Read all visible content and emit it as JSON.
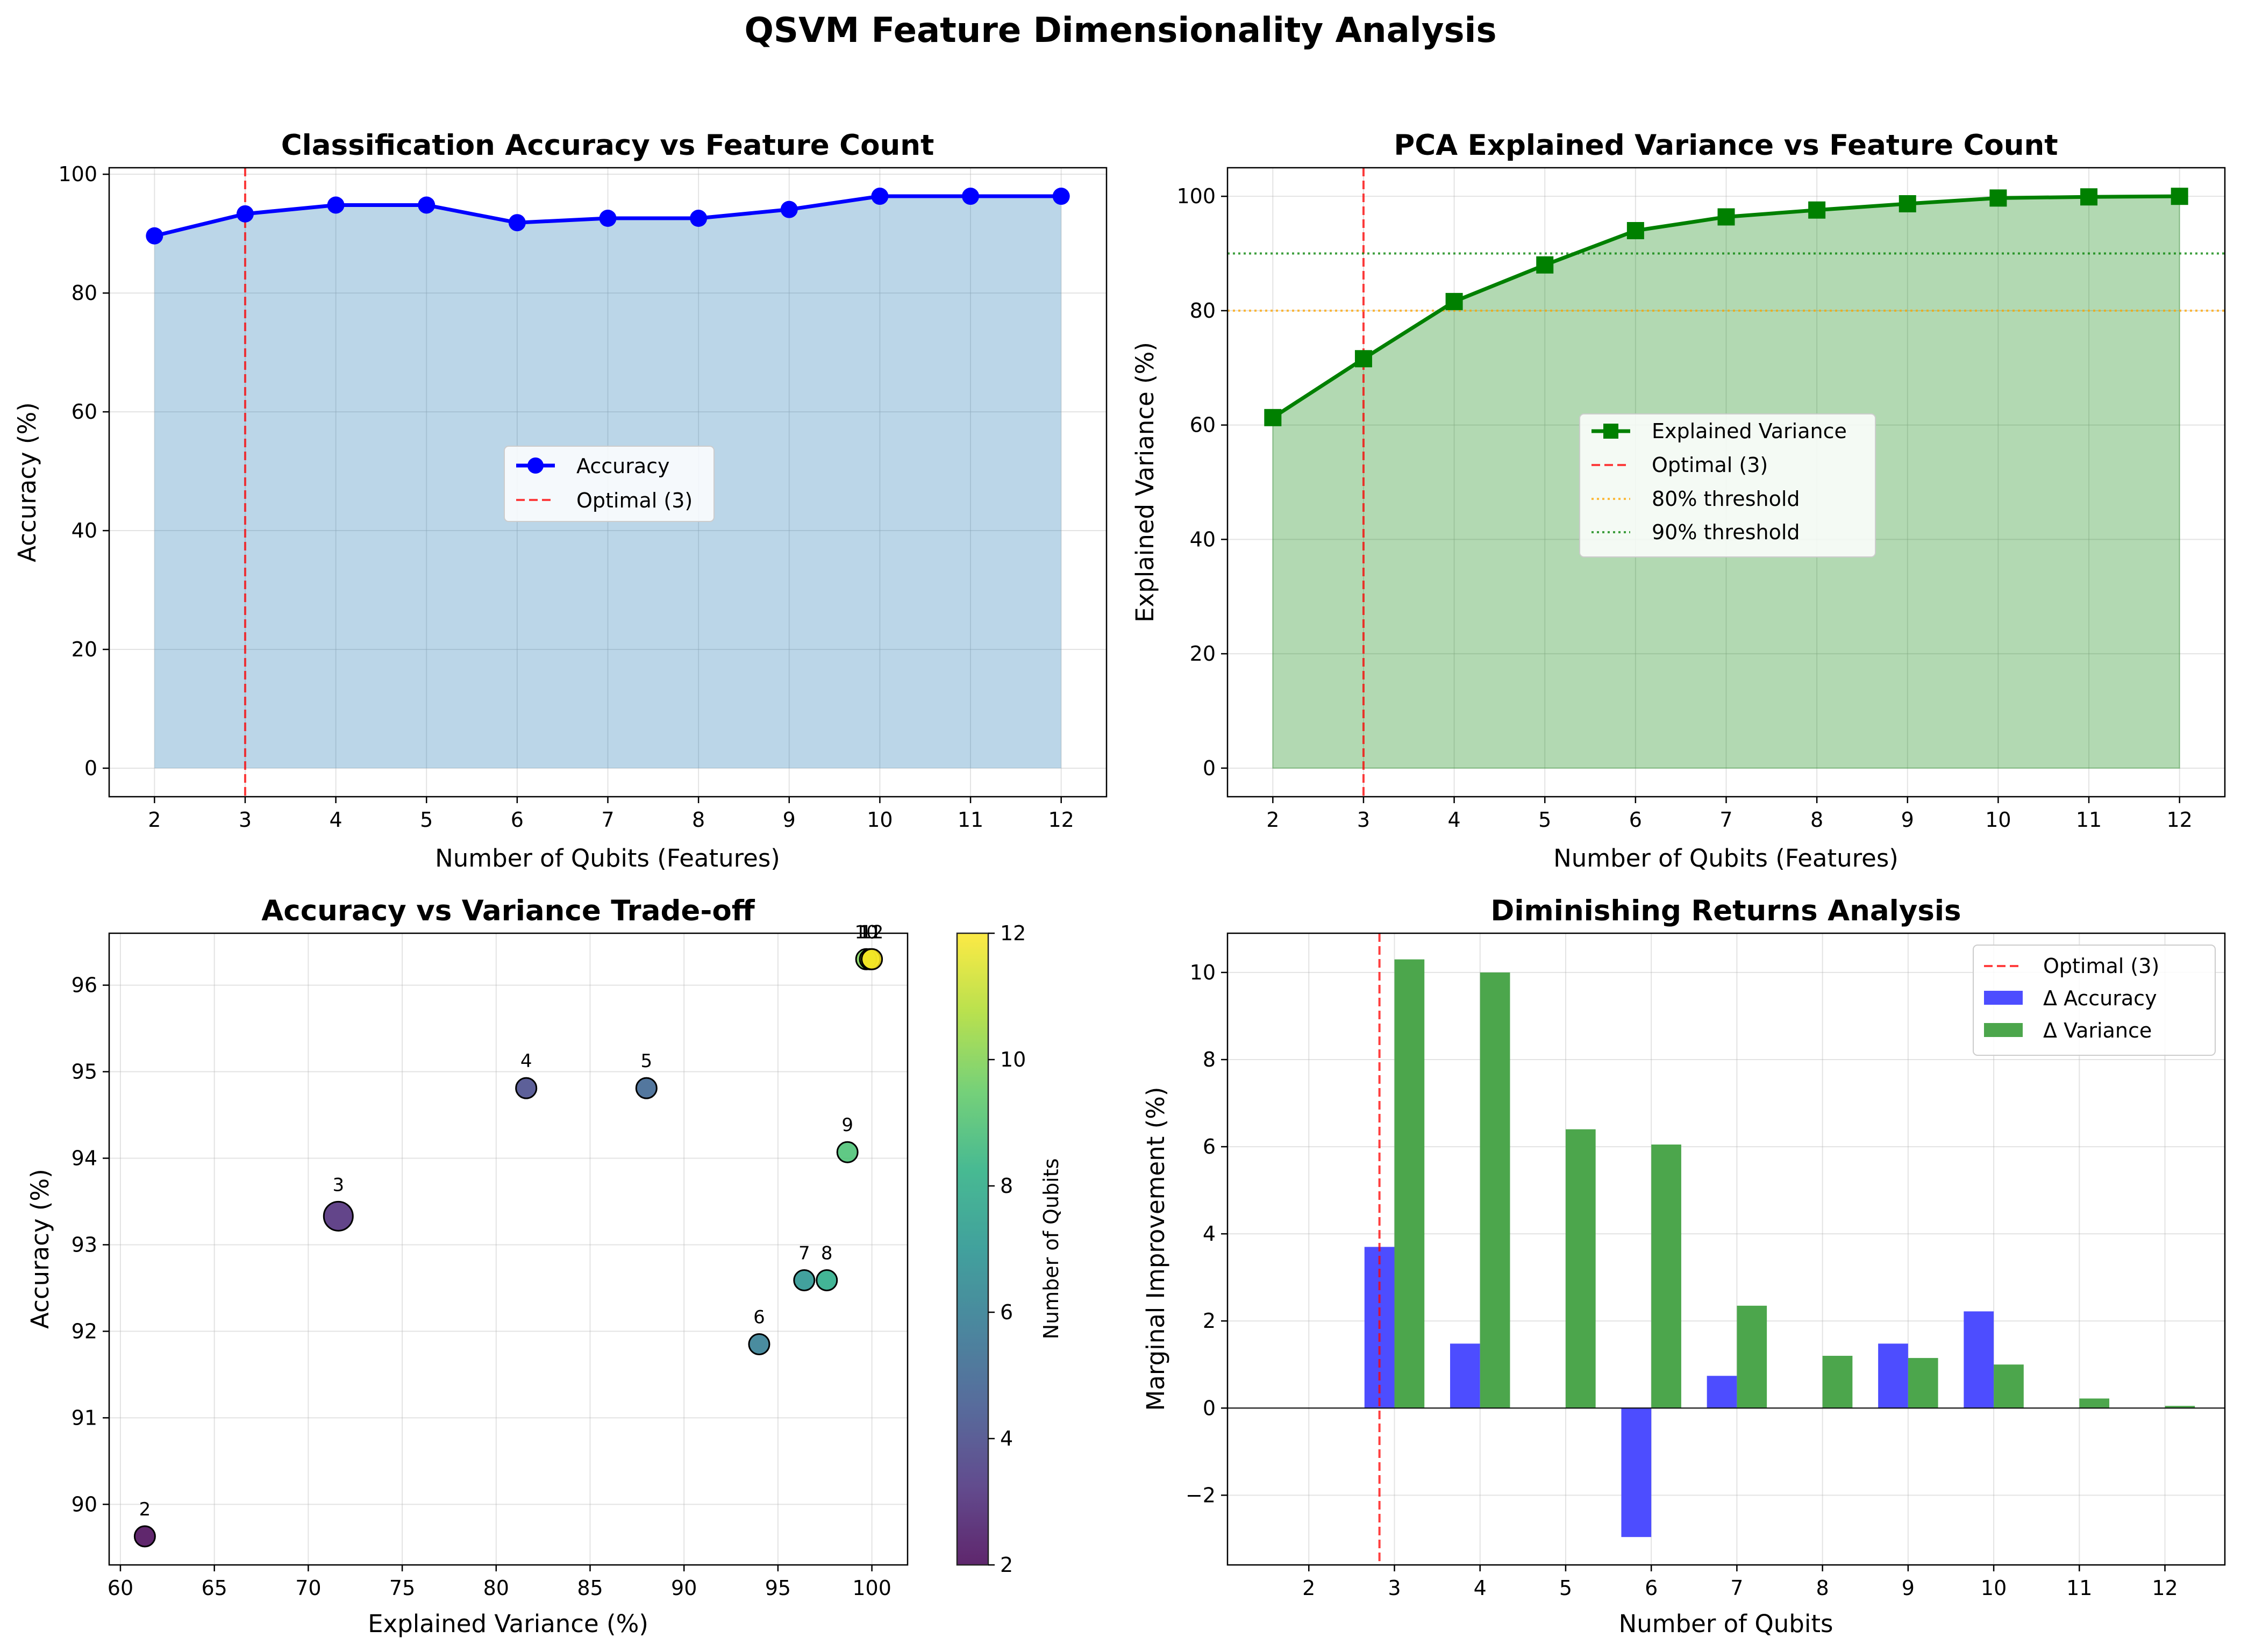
{
  "figure_title": "QSVM Feature Dimensionality Analysis",
  "colors": {
    "accuracy": "#0000ff",
    "acc_fill": "#1f77b4",
    "variance": "#008000",
    "optimal": "#ff0000",
    "t80": "#ffa500",
    "t90": "#008000",
    "delta_acc": "#4d4dff",
    "delta_var": "#4ca64c"
  },
  "chart_data": [
    {
      "id": "accuracy_vs_features",
      "type": "line",
      "title": "Classification Accuracy vs Feature Count",
      "xlabel": "Number of Qubits (Features)",
      "ylabel": "Accuracy (%)",
      "x": [
        2,
        3,
        4,
        5,
        6,
        7,
        8,
        9,
        10,
        11,
        12
      ],
      "series": [
        {
          "name": "Accuracy",
          "values": [
            89.63,
            93.33,
            94.81,
            94.81,
            91.85,
            92.59,
            92.59,
            94.07,
            96.3,
            96.3,
            96.3
          ]
        }
      ],
      "optimal_x": 3,
      "optimal_label": "Optimal (3)",
      "xlim": [
        1.5,
        12.5
      ],
      "ylim": [
        -4.8,
        101.1
      ],
      "xticks": [
        "2",
        "3",
        "4",
        "5",
        "6",
        "7",
        "8",
        "9",
        "10",
        "11",
        "12"
      ],
      "yticks": [
        "0",
        "20",
        "40",
        "60",
        "80",
        "100"
      ],
      "legend": "center",
      "grid": true
    },
    {
      "id": "pca_variance",
      "type": "line",
      "title": "PCA Explained Variance vs Feature Count",
      "xlabel": "Number of Qubits (Features)",
      "ylabel": "Explained Variance (%)",
      "x": [
        2,
        3,
        4,
        5,
        6,
        7,
        8,
        9,
        10,
        11,
        12
      ],
      "series": [
        {
          "name": "Explained Variance",
          "values": [
            61.3,
            71.6,
            81.6,
            88.0,
            94.0,
            96.4,
            97.6,
            98.7,
            99.7,
            99.9,
            100.0
          ]
        }
      ],
      "optimal_x": 3,
      "thresholds": [
        {
          "value": 80,
          "label": "80% threshold"
        },
        {
          "value": 90,
          "label": "90% threshold"
        }
      ],
      "legend_labels": [
        "Explained Variance",
        "Optimal (3)",
        "80% threshold",
        "90% threshold"
      ],
      "xlim": [
        1.5,
        12.5
      ],
      "ylim": [
        -5,
        105
      ],
      "xticks": [
        "2",
        "3",
        "4",
        "5",
        "6",
        "7",
        "8",
        "9",
        "10",
        "11",
        "12"
      ],
      "yticks": [
        "0",
        "20",
        "40",
        "60",
        "80",
        "100"
      ],
      "legend": "center",
      "grid": true
    },
    {
      "id": "tradeoff_scatter",
      "type": "scatter",
      "title": "Accuracy vs Variance Trade-off",
      "xlabel": "Explained Variance (%)",
      "ylabel": "Accuracy (%)",
      "points": [
        {
          "x": 61.3,
          "y": 89.63,
          "qubits": 2,
          "label": "2"
        },
        {
          "x": 71.6,
          "y": 93.33,
          "qubits": 3,
          "label": "3",
          "highlight": true
        },
        {
          "x": 81.6,
          "y": 94.81,
          "qubits": 4,
          "label": "4"
        },
        {
          "x": 88.0,
          "y": 94.81,
          "qubits": 5,
          "label": "5"
        },
        {
          "x": 94.0,
          "y": 91.85,
          "qubits": 6,
          "label": "6"
        },
        {
          "x": 96.4,
          "y": 92.59,
          "qubits": 7,
          "label": "7"
        },
        {
          "x": 97.6,
          "y": 92.59,
          "qubits": 8,
          "label": "8"
        },
        {
          "x": 98.7,
          "y": 94.07,
          "qubits": 9,
          "label": "9"
        },
        {
          "x": 99.7,
          "y": 96.3,
          "qubits": 10,
          "label": "10"
        },
        {
          "x": 99.9,
          "y": 96.3,
          "qubits": 11,
          "label": "11"
        },
        {
          "x": 100.0,
          "y": 96.3,
          "qubits": 12,
          "label": "12"
        }
      ],
      "xlim": [
        59.4,
        101.9
      ],
      "ylim": [
        89.3,
        96.6
      ],
      "xticks": [
        "60",
        "65",
        "70",
        "75",
        "80",
        "85",
        "90",
        "95",
        "100"
      ],
      "yticks": [
        "90",
        "91",
        "92",
        "93",
        "94",
        "95",
        "96"
      ],
      "colorbar": {
        "label": "Number of Qubits",
        "range": [
          2,
          12
        ],
        "ticks": [
          "2",
          "4",
          "6",
          "8",
          "10",
          "12"
        ],
        "colormap": "viridis"
      },
      "grid": true
    },
    {
      "id": "diminishing_returns",
      "type": "bar",
      "title": "Diminishing Returns Analysis",
      "xlabel": "Number of Qubits",
      "ylabel": "Marginal Improvement (%)",
      "categories": [
        "2",
        "3",
        "4",
        "5",
        "6",
        "7",
        "8",
        "9",
        "10",
        "11",
        "12"
      ],
      "series": [
        {
          "name": "Δ Accuracy",
          "values": [
            0,
            3.7,
            1.48,
            0,
            -2.96,
            0.74,
            0,
            1.48,
            2.22,
            0,
            0
          ]
        },
        {
          "name": "Δ Variance",
          "values": [
            0,
            10.3,
            10.0,
            6.4,
            6.05,
            2.35,
            1.2,
            1.15,
            1.0,
            0.22,
            0.05
          ]
        }
      ],
      "optimal_x": 3,
      "optimal_label": "Optimal (3)",
      "ylim": [
        -3.6,
        10.9
      ],
      "yticks": [
        "−2",
        "0",
        "2",
        "4",
        "6",
        "8",
        "10"
      ],
      "legend": "top-right",
      "grid": true
    }
  ]
}
